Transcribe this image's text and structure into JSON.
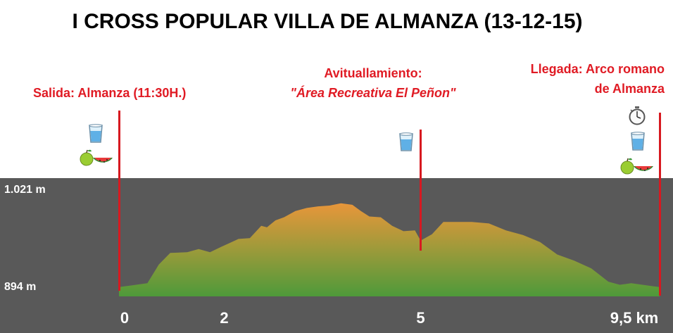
{
  "title": "I CROSS POPULAR VILLA DE ALMANZA (13-12-15)",
  "labels": {
    "start": "Salida: Almanza (11:30H.)",
    "aid_line1": "Avituallamiento:",
    "aid_line2": "\"Área Recreativa El Peñon\"",
    "finish_line1": "Llegada: Arco romano",
    "finish_line2": "de Almanza"
  },
  "icons": {
    "start": [
      "water-glass",
      "fruit-apple-watermelon"
    ],
    "aid": [
      "water-glass"
    ],
    "finish": [
      "stopwatch",
      "water-glass",
      "fruit-apple-watermelon"
    ]
  },
  "colors": {
    "marker_line": "#d71920",
    "label_text": "#e01b24",
    "panel_bg": "#595959",
    "fill_high": "#e8963a",
    "fill_low": "#4e9a3a"
  },
  "chart_data": {
    "type": "area",
    "title": "I CROSS POPULAR VILLA DE ALMANZA (13-12-15)",
    "xlabel": "km",
    "ylabel": "",
    "xlim": [
      0,
      9.5
    ],
    "ylim": [
      894,
      1021
    ],
    "x_tick_labels": [
      "0",
      "2",
      "5",
      "9,5 km"
    ],
    "x_tick_values": [
      0,
      1.85,
      5.3,
      9.5
    ],
    "y_tick_labels": [
      "1.021 m",
      "894 m"
    ],
    "markers": [
      {
        "x": 0,
        "name": "Salida"
      },
      {
        "x": 5.3,
        "name": "Avituallamiento"
      },
      {
        "x": 9.5,
        "name": "Llegada"
      }
    ],
    "series": [
      {
        "x": [
          0,
          0.2,
          0.5,
          0.7,
          0.9,
          1.2,
          1.4,
          1.6,
          1.8,
          1.95,
          2.1,
          2.3,
          2.5,
          2.6,
          2.75,
          2.9,
          3.1,
          3.3,
          3.5,
          3.7,
          3.9,
          4.1,
          4.25,
          4.4,
          4.6,
          4.8,
          5.0,
          5.2,
          5.3,
          5.5,
          5.7,
          5.9,
          6.2,
          6.5,
          6.8,
          7.1,
          7.4,
          7.7,
          8.0,
          8.3,
          8.6,
          8.8,
          9.0,
          9.2,
          9.4,
          9.5
        ],
        "y": [
          896,
          898,
          901,
          925,
          940,
          941,
          945,
          941,
          948,
          953,
          958,
          959,
          975,
          973,
          982,
          986,
          994,
          998,
          1000,
          1001,
          1004,
          1002,
          994,
          987,
          986,
          975,
          968,
          969,
          956,
          964,
          980,
          980,
          980,
          978,
          969,
          963,
          954,
          938,
          930,
          920,
          903,
          899,
          901,
          899,
          897,
          896
        ]
      }
    ]
  }
}
